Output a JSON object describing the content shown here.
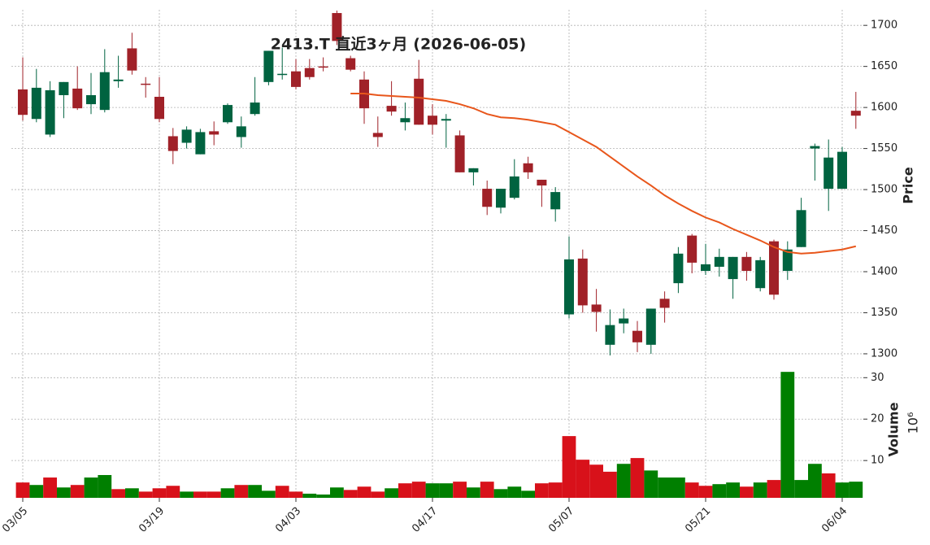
{
  "chart_data": {
    "type": "candlestick",
    "title": "2413.T  直近3ヶ月  (2026-06-05)",
    "ylabel": "Price",
    "grid": true,
    "categories": [
      "03/05",
      null,
      null,
      null,
      null,
      null,
      null,
      null,
      null,
      null,
      "03/19",
      null,
      null,
      null,
      null,
      null,
      null,
      null,
      null,
      null,
      "04/03",
      null,
      null,
      null,
      null,
      null,
      null,
      null,
      null,
      null,
      "04/17",
      null,
      null,
      null,
      null,
      null,
      null,
      null,
      null,
      null,
      "05/07",
      null,
      null,
      null,
      null,
      null,
      null,
      null,
      null,
      null,
      "05/21",
      null,
      null,
      null,
      null,
      null,
      null,
      null,
      null,
      null,
      "06/04",
      null
    ],
    "open": [
      1622,
      1586,
      1567,
      1615,
      1623,
      1604,
      1597,
      1632,
      1672,
      1629,
      1613,
      1565,
      1557,
      1543,
      1571,
      1582,
      1564,
      1592,
      1631,
      1640,
      1644,
      1648,
      1650,
      1715,
      1660,
      1634,
      1569,
      1602,
      1582,
      1635,
      1590,
      1584,
      1566,
      1521,
      1501,
      1478,
      1490,
      1532,
      1512,
      1476,
      1348,
      1416,
      1360,
      1311,
      1337,
      1328,
      1311,
      1367,
      1386,
      1444,
      1401,
      1406,
      1391,
      1418,
      1380,
      1437,
      1401,
      1430,
      1550,
      1501,
      1501,
      1596
    ],
    "high": [
      1661,
      1647,
      1632,
      1631,
      1650,
      1642,
      1671,
      1663,
      1691,
      1637,
      1637,
      1575,
      1577,
      1574,
      1583,
      1605,
      1589,
      1637,
      1669,
      1673,
      1659,
      1659,
      1661,
      1718,
      1663,
      1644,
      1589,
      1632,
      1606,
      1658,
      1604,
      1592,
      1572,
      1526,
      1511,
      1501,
      1537,
      1540,
      1512,
      1503,
      1443,
      1427,
      1379,
      1354,
      1355,
      1340,
      1355,
      1376,
      1430,
      1446,
      1434,
      1428,
      1418,
      1424,
      1418,
      1439,
      1437,
      1490,
      1556,
      1561,
      1552,
      1619
    ],
    "low": [
      1584,
      1582,
      1564,
      1587,
      1597,
      1592,
      1594,
      1624,
      1640,
      1612,
      1582,
      1531,
      1550,
      1543,
      1554,
      1580,
      1551,
      1590,
      1627,
      1634,
      1622,
      1634,
      1644,
      1676,
      1644,
      1580,
      1552,
      1590,
      1572,
      1579,
      1567,
      1551,
      1521,
      1505,
      1469,
      1471,
      1488,
      1513,
      1479,
      1461,
      1343,
      1350,
      1327,
      1298,
      1325,
      1302,
      1300,
      1338,
      1374,
      1398,
      1396,
      1394,
      1367,
      1389,
      1376,
      1366,
      1390,
      1430,
      1511,
      1474,
      1501,
      1574
    ],
    "close": [
      1591,
      1624,
      1621,
      1631,
      1599,
      1615,
      1643,
      1634,
      1645,
      1628,
      1586,
      1547,
      1573,
      1570,
      1567,
      1603,
      1577,
      1606,
      1669,
      1641,
      1625,
      1637,
      1649,
      1681,
      1646,
      1599,
      1564,
      1595,
      1587,
      1579,
      1579,
      1586,
      1521,
      1526,
      1479,
      1501,
      1516,
      1521,
      1505,
      1497,
      1415,
      1359,
      1351,
      1335,
      1343,
      1314,
      1355,
      1356,
      1422,
      1411,
      1409,
      1418,
      1418,
      1401,
      1414,
      1372,
      1427,
      1475,
      1553,
      1539,
      1546,
      1590
    ],
    "up_color": "#006340",
    "down_color": "#a02128",
    "ma": {
      "color": "#e8561b",
      "values": [
        null,
        null,
        null,
        null,
        null,
        null,
        null,
        null,
        null,
        null,
        null,
        null,
        null,
        null,
        null,
        null,
        null,
        null,
        null,
        null,
        null,
        null,
        null,
        null,
        1617,
        1617,
        1615,
        1614,
        1613,
        1612,
        1610,
        1608,
        1604,
        1599,
        1592,
        1588,
        1587,
        1585,
        1582,
        1579,
        1570,
        1561,
        1552,
        1540,
        1528,
        1516,
        1505,
        1493,
        1483,
        1474,
        1466,
        1460,
        1452,
        1445,
        1438,
        1430,
        1424,
        1422,
        1423,
        1425,
        1427,
        1431
      ]
    },
    "ylim": [
      1295,
      1719
    ],
    "yticks": [
      1300,
      1350,
      1400,
      1450,
      1500,
      1550,
      1600,
      1650,
      1700
    ],
    "volume": {
      "label": "Volume",
      "scale_label": "10⁶",
      "up_color": "#007f00",
      "down_color": "#d8111a",
      "values": [
        4.7,
        4.1,
        5.9,
        3.5,
        4.1,
        5.9,
        6.5,
        3.1,
        3.3,
        2.5,
        3.3,
        3.9,
        2.5,
        2.5,
        2.5,
        3.3,
        4.1,
        4.1,
        2.7,
        3.9,
        2.5,
        2.0,
        1.8,
        3.5,
        2.9,
        3.7,
        2.5,
        3.3,
        4.5,
        4.9,
        4.5,
        4.5,
        4.9,
        3.5,
        4.9,
        3.1,
        3.7,
        2.7,
        4.5,
        4.7,
        15.9,
        10.2,
        9.0,
        7.3,
        9.2,
        10.6,
        7.6,
        5.9,
        5.9,
        4.7,
        3.9,
        4.3,
        4.7,
        3.7,
        4.7,
        5.3,
        31.4,
        5.3,
        9.2,
        6.9,
        4.7,
        4.9
      ],
      "ylim": [
        1,
        33.2
      ],
      "yticks": [
        10,
        20,
        30
      ]
    }
  }
}
